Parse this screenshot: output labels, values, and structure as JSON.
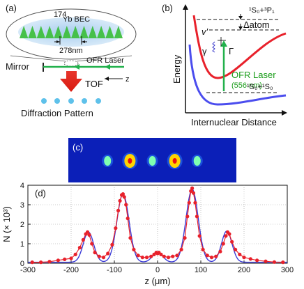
{
  "panel_a": {
    "label": "(a)",
    "bec_mass": "174",
    "bec_text": "Yb BEC",
    "spacing": "278nm",
    "mirror": "Mirror",
    "laser": "OFR Laser",
    "axis": "z",
    "tof": "TOF",
    "pattern": "Diffraction Pattern"
  },
  "panel_b": {
    "label": "(b)",
    "ylabel": "Energy",
    "xlabel": "Internuclear Distance",
    "upper_asym": "¹S₀+³P₁",
    "lower_asym": "¹S₀+¹S₀",
    "detuning": "Δatom",
    "v_label": "v'",
    "gamma_label": "γ",
    "Gamma_label": "Γ",
    "laser_name": "OFR Laser",
    "laser_wavelength": "(556 nm)"
  },
  "panel_c": {
    "label": "(c)"
  },
  "chart_data": {
    "type": "line",
    "label": "(d)",
    "xlabel": "z (μm)",
    "ylabel": "N (× 10³)",
    "xlim": [
      -300,
      300
    ],
    "ylim": [
      0,
      4
    ],
    "xticks": [
      "-300",
      "-200",
      "-100",
      "0",
      "100",
      "200",
      "300"
    ],
    "yticks": [
      "0",
      "1",
      "2",
      "3",
      "4"
    ],
    "grid": true,
    "fit_peaks": [
      {
        "center": -160,
        "height": 1.55,
        "width": 12
      },
      {
        "center": -80,
        "height": 3.5,
        "width": 14
      },
      {
        "center": 0,
        "height": 0.5,
        "width": 12
      },
      {
        "center": 80,
        "height": 3.75,
        "width": 14
      },
      {
        "center": 160,
        "height": 1.6,
        "width": 12
      }
    ],
    "series": [
      {
        "x": [
          -290,
          -270,
          -250,
          -230,
          -215,
          -200,
          -190,
          -180,
          -172,
          -166,
          -162,
          -158,
          -152,
          -145,
          -135,
          -125,
          -115,
          -105,
          -97,
          -91,
          -87,
          -83,
          -80,
          -77,
          -73,
          -69,
          -63,
          -55,
          -45,
          -35,
          -25,
          -15,
          -8,
          -3,
          0,
          3,
          8,
          15,
          25,
          35,
          45,
          55,
          63,
          69,
          73,
          77,
          80,
          83,
          87,
          91,
          97,
          105,
          115,
          125,
          135,
          145,
          152,
          158,
          162,
          166,
          172,
          180,
          190,
          200,
          215,
          230,
          250,
          270,
          290
        ],
        "y": [
          0.05,
          0.05,
          0.08,
          0.15,
          0.2,
          0.25,
          0.45,
          0.8,
          1.2,
          1.5,
          1.6,
          1.45,
          1.0,
          0.55,
          0.35,
          0.3,
          0.5,
          0.95,
          1.8,
          2.7,
          3.2,
          3.5,
          3.55,
          3.4,
          3.0,
          2.3,
          1.3,
          0.7,
          0.4,
          0.3,
          0.3,
          0.35,
          0.45,
          0.55,
          0.5,
          0.55,
          0.45,
          0.35,
          0.3,
          0.35,
          0.4,
          0.7,
          1.3,
          2.4,
          3.1,
          3.7,
          3.85,
          3.6,
          3.1,
          2.4,
          1.4,
          0.7,
          0.4,
          0.3,
          0.35,
          0.6,
          1.0,
          1.4,
          1.6,
          1.5,
          1.1,
          0.7,
          0.45,
          0.3,
          0.22,
          0.15,
          0.1,
          0.06,
          0.05
        ]
      }
    ]
  }
}
